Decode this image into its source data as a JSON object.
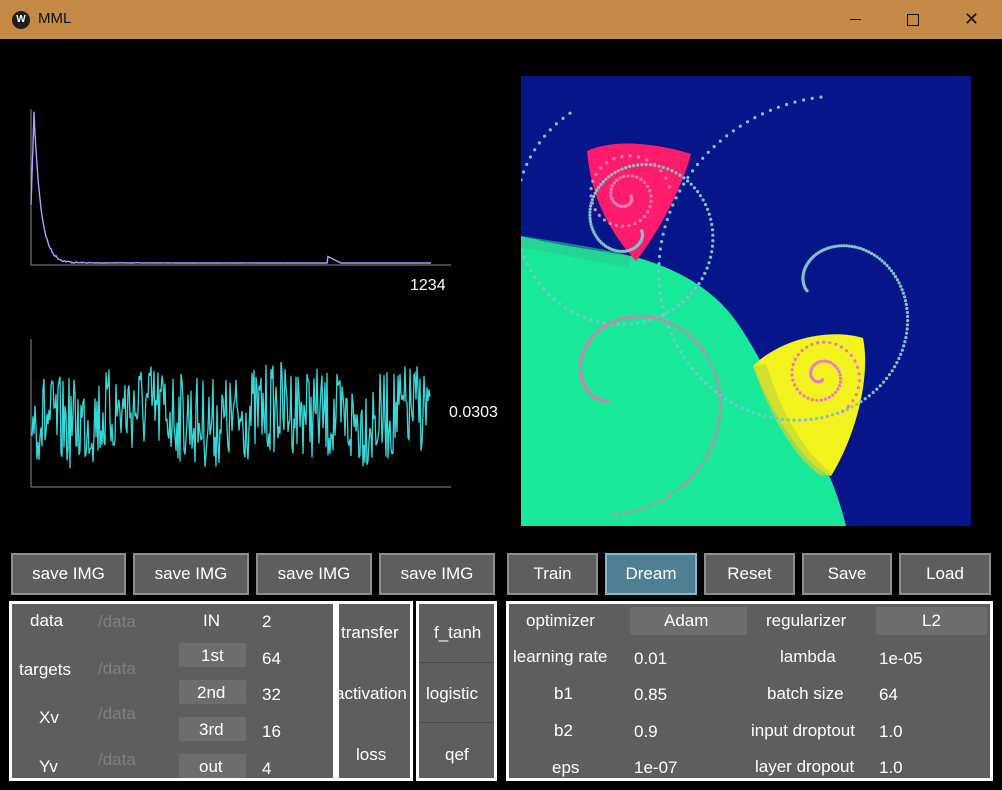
{
  "window": {
    "title": "MML",
    "icon": "kivy-logo-icon"
  },
  "plots": {
    "loss_plot": {
      "readout": "1234",
      "line_color": "#a9a3ff"
    },
    "metric_plot": {
      "readout": "0.0303",
      "line_color": "#39d8d8"
    }
  },
  "save_buttons": [
    "save IMG",
    "save IMG",
    "save IMG",
    "save IMG"
  ],
  "actions": [
    {
      "label": "Train",
      "active": false
    },
    {
      "label": "Dream",
      "active": true
    },
    {
      "label": "Reset",
      "active": false
    },
    {
      "label": "Save",
      "active": false
    },
    {
      "label": "Load",
      "active": false
    }
  ],
  "data_panel": {
    "rows": [
      {
        "name": "data",
        "path": "/data"
      },
      {
        "name": "targets",
        "path": "/data"
      },
      {
        "name": "Xv",
        "path": "/data"
      },
      {
        "name": "Yv",
        "path": "/data"
      }
    ]
  },
  "layers": [
    {
      "label": "IN",
      "value": "2"
    },
    {
      "label": "1st",
      "value": "64"
    },
    {
      "label": "2nd",
      "value": "32"
    },
    {
      "label": "3rd",
      "value": "16"
    },
    {
      "label": "out",
      "value": "4"
    }
  ],
  "functions": [
    {
      "label": "transfer",
      "value": "f_tanh"
    },
    {
      "label": "activation",
      "value": "logistic"
    },
    {
      "label": "loss",
      "value": "qef"
    }
  ],
  "hyper": {
    "optimizer": {
      "label": "optimizer",
      "value": "Adam"
    },
    "regularizer": {
      "label": "regularizer",
      "value": "L2"
    },
    "left": [
      {
        "label": "learning rate",
        "value": "0.01"
      },
      {
        "label": "b1",
        "value": "0.85"
      },
      {
        "label": "b2",
        "value": "0.9"
      },
      {
        "label": "eps",
        "value": "1e-07"
      }
    ],
    "right": [
      {
        "label": "lambda",
        "value": "1e-05"
      },
      {
        "label": "batch size",
        "value": "64"
      },
      {
        "label": "input droptout",
        "value": "1.0"
      },
      {
        "label": "layer dropout",
        "value": "1.0"
      }
    ]
  }
}
